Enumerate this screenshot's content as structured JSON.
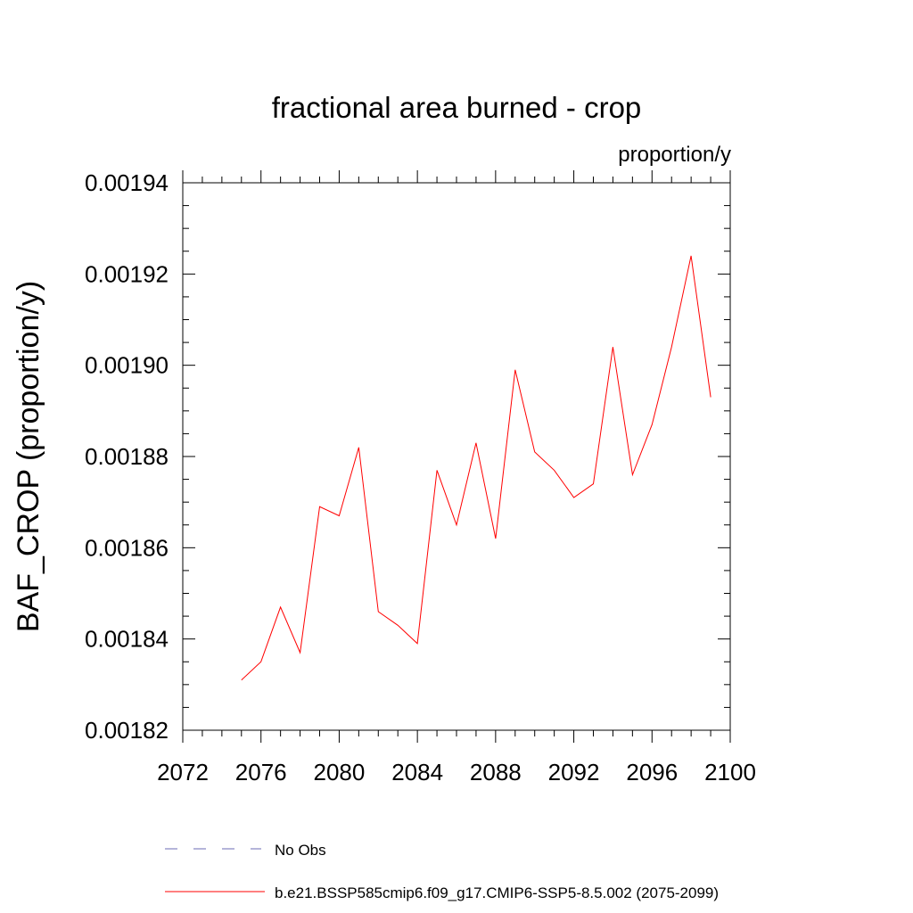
{
  "chart_data": {
    "type": "line",
    "title": "fractional area burned - crop",
    "units_label": "proportion/y",
    "ylabel": "BAF_CROP  (proportion/y)",
    "xlabel": "",
    "xlim": [
      2072,
      2100
    ],
    "ylim": [
      0.00182,
      0.00194
    ],
    "x_ticks": [
      "2072",
      "2076",
      "2080",
      "2084",
      "2088",
      "2092",
      "2096",
      "2100"
    ],
    "y_ticks": [
      "0.00182",
      "0.00184",
      "0.00186",
      "0.00188",
      "0.00190",
      "0.00192",
      "0.00194"
    ],
    "grid": false,
    "legend_position": "bottom",
    "series": [
      {
        "name": "b.e21.BSSP585cmip6.f09_g17.CMIP6-SSP5-8.5.002 (2075-2099)",
        "color": "#ff0000",
        "style": "solid",
        "x": [
          2075,
          2076,
          2077,
          2078,
          2079,
          2080,
          2081,
          2082,
          2083,
          2084,
          2085,
          2086,
          2087,
          2088,
          2089,
          2090,
          2091,
          2092,
          2093,
          2094,
          2095,
          2096,
          2097,
          2098,
          2099
        ],
        "y": [
          0.001831,
          0.001835,
          0.001847,
          0.001837,
          0.001869,
          0.001867,
          0.001882,
          0.001846,
          0.001843,
          0.001839,
          0.001877,
          0.001865,
          0.001883,
          0.001862,
          0.001899,
          0.001881,
          0.001877,
          0.001871,
          0.001874,
          0.001904,
          0.001876,
          0.001887,
          0.001904,
          0.001924,
          0.001893
        ]
      }
    ],
    "legend": [
      {
        "label": "No Obs",
        "color": "#6b6bb5",
        "style": "dashed"
      },
      {
        "label": "b.e21.BSSP585cmip6.f09_g17.CMIP6-SSP5-8.5.002 (2075-2099)",
        "color": "#ff0000",
        "style": "solid"
      }
    ]
  }
}
